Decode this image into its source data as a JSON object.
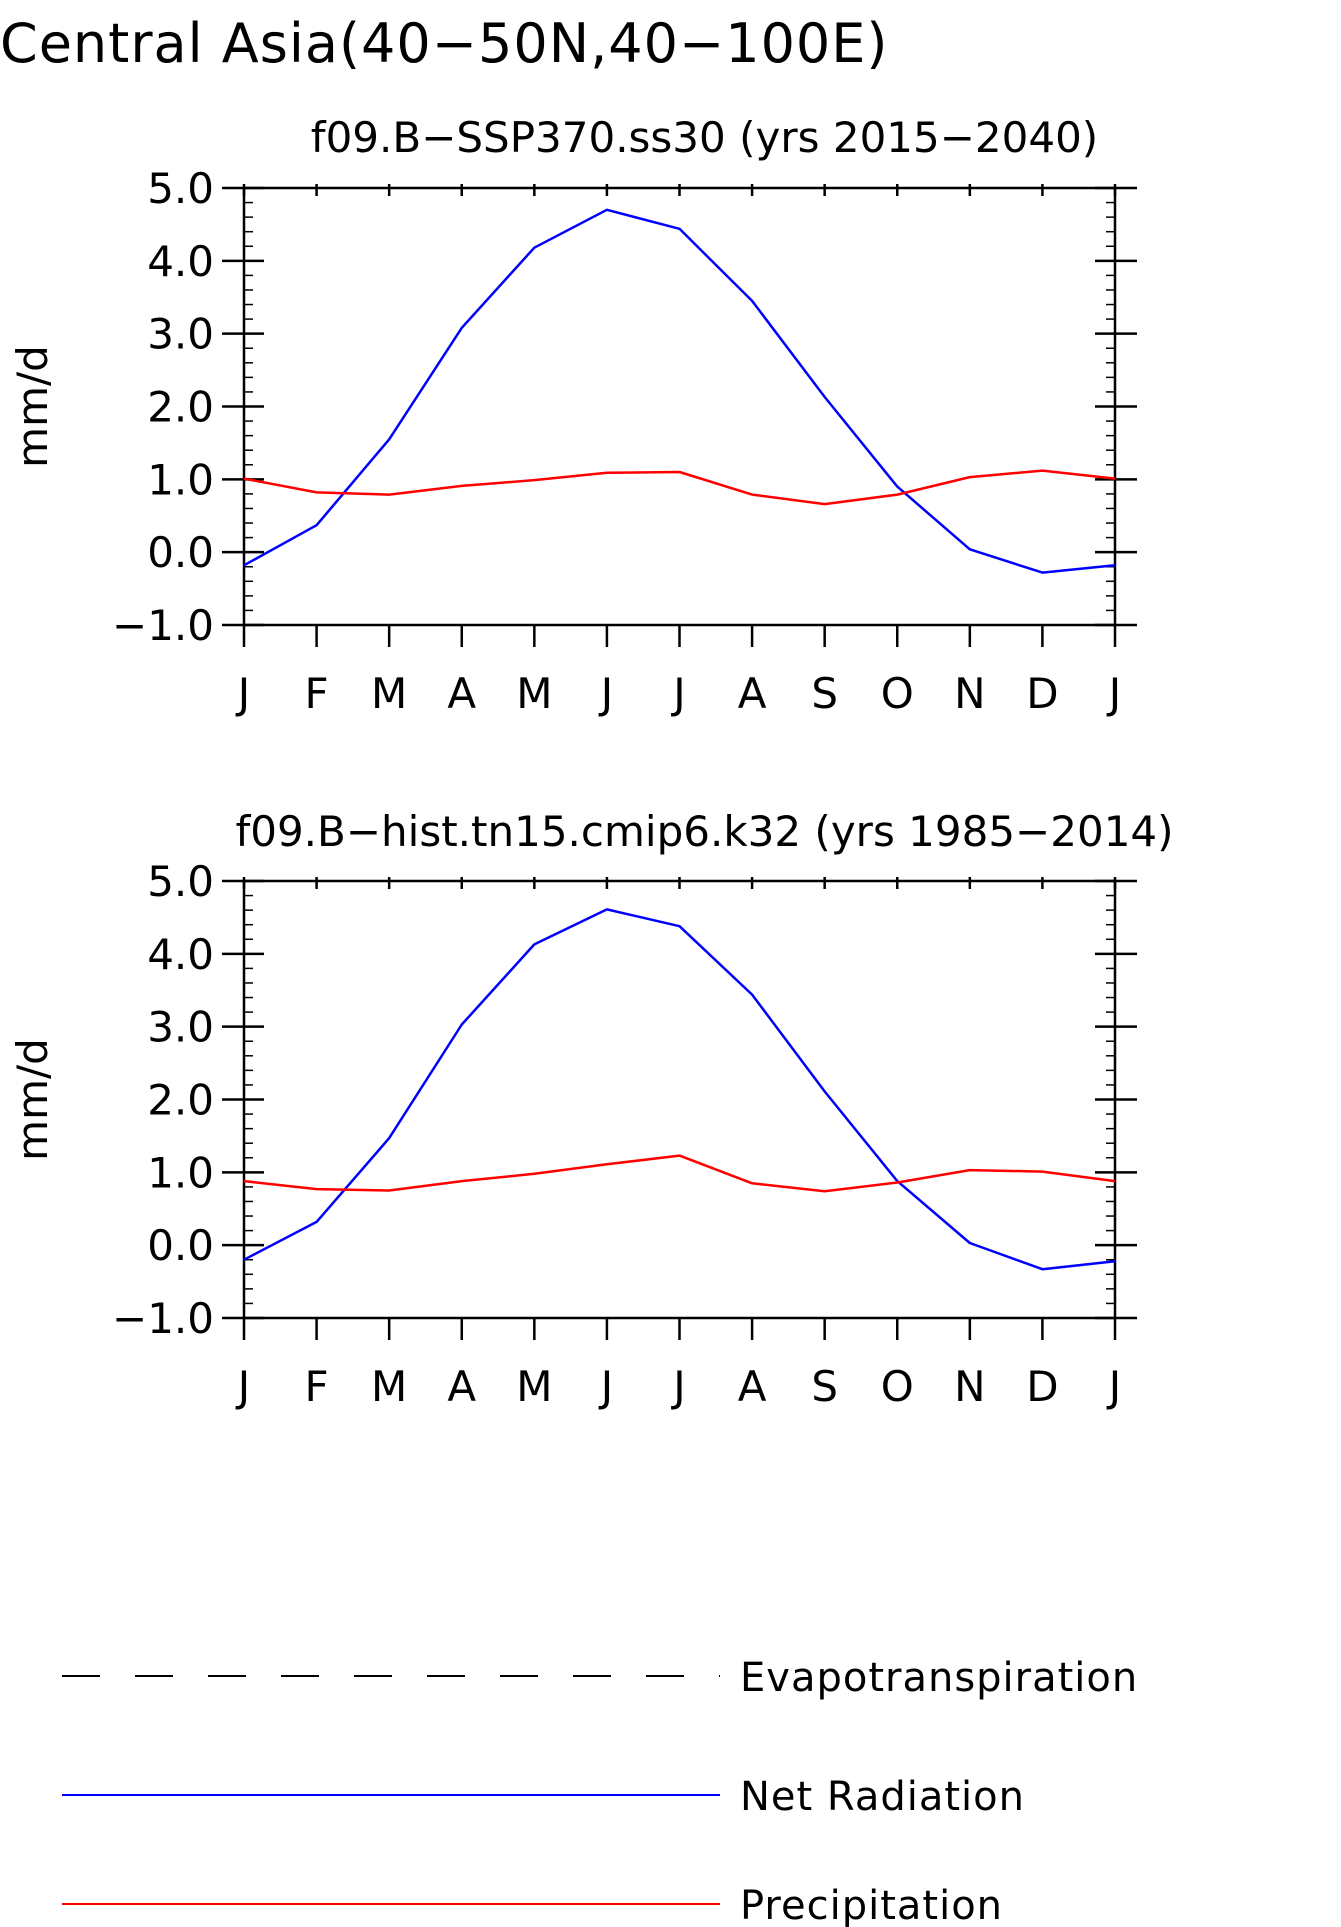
{
  "page_title": "Central Asia(40−50N,40−100E)",
  "colors": {
    "net_radiation": "#0000ff",
    "precipitation": "#ff0000",
    "evapotranspiration": "#000000",
    "axes": "#000000"
  },
  "legend": {
    "items": [
      {
        "label": "Evapotranspiration",
        "style": "dashed",
        "color": "#000000"
      },
      {
        "label": "Net Radiation",
        "style": "solid",
        "color": "#0000ff"
      },
      {
        "label": "Precipitation",
        "style": "solid",
        "color": "#ff0000"
      }
    ]
  },
  "chart_data": [
    {
      "type": "line",
      "title": "f09.B−SSP370.ss30 (yrs 2015−2040)",
      "xlabel": "",
      "ylabel": "mm/d",
      "categories": [
        "J",
        "F",
        "M",
        "A",
        "M",
        "J",
        "J",
        "A",
        "S",
        "O",
        "N",
        "D",
        "J"
      ],
      "ylim": [
        -1.0,
        5.0
      ],
      "yticks": [
        -1.0,
        0.0,
        1.0,
        2.0,
        3.0,
        4.0,
        5.0
      ],
      "ytick_labels": [
        "−1.0",
        "0.0",
        "1.0",
        "2.0",
        "3.0",
        "4.0",
        "5.0"
      ],
      "grid": false,
      "series": [
        {
          "name": "Net Radiation",
          "color": "#0000ff",
          "values": [
            -0.18,
            0.37,
            1.55,
            3.08,
            4.18,
            4.7,
            4.44,
            3.45,
            2.13,
            0.9,
            0.04,
            -0.28,
            -0.18
          ]
        },
        {
          "name": "Precipitation",
          "color": "#ff0000",
          "values": [
            1.01,
            0.82,
            0.79,
            0.91,
            0.99,
            1.09,
            1.1,
            0.79,
            0.66,
            0.79,
            1.03,
            1.12,
            1.01
          ]
        }
      ]
    },
    {
      "type": "line",
      "title": "f09.B−hist.tn15.cmip6.k32 (yrs 1985−2014)",
      "xlabel": "",
      "ylabel": "mm/d",
      "categories": [
        "J",
        "F",
        "M",
        "A",
        "M",
        "J",
        "J",
        "A",
        "S",
        "O",
        "N",
        "D",
        "J"
      ],
      "ylim": [
        -1.0,
        5.0
      ],
      "yticks": [
        -1.0,
        0.0,
        1.0,
        2.0,
        3.0,
        4.0,
        5.0
      ],
      "ytick_labels": [
        "−1.0",
        "0.0",
        "1.0",
        "2.0",
        "3.0",
        "4.0",
        "5.0"
      ],
      "grid": false,
      "series": [
        {
          "name": "Net Radiation",
          "color": "#0000ff",
          "values": [
            -0.2,
            0.32,
            1.47,
            3.03,
            4.13,
            4.61,
            4.38,
            3.44,
            2.11,
            0.88,
            0.03,
            -0.33,
            -0.22
          ]
        },
        {
          "name": "Precipitation",
          "color": "#ff0000",
          "values": [
            0.88,
            0.77,
            0.75,
            0.88,
            0.98,
            1.11,
            1.23,
            0.85,
            0.74,
            0.86,
            1.03,
            1.01,
            0.88
          ]
        }
      ]
    }
  ]
}
